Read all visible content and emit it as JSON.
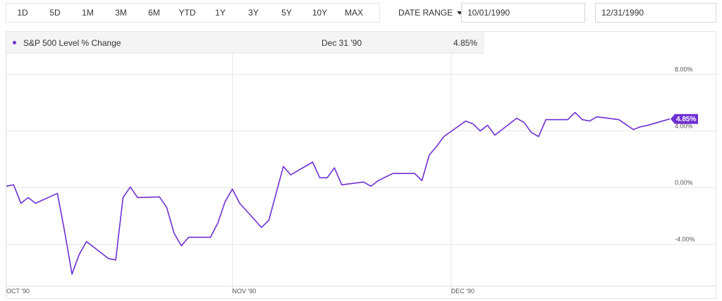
{
  "toolbar": {
    "ranges": [
      "1D",
      "5D",
      "1M",
      "3M",
      "6M",
      "YTD",
      "1Y",
      "3Y",
      "5Y",
      "10Y",
      "MAX"
    ],
    "date_range_label": "DATE RANGE",
    "start_date": "10/01/1990",
    "end_date": "12/31/1990"
  },
  "legend": {
    "series_name": "S&P 500 Level % Change",
    "date": "Dec 31 '90",
    "value": "4.85%"
  },
  "colors": {
    "line": "#6f2fd3",
    "badge": "#6f2fd3",
    "grid": "#e6e6e6"
  },
  "chart_data": {
    "type": "line",
    "x_ticks": [
      "OCT '90",
      "NOV '90",
      "DEC '90"
    ],
    "y_ticks": [
      "8.00%",
      "4.00%",
      "0.00%",
      "-4.00%"
    ],
    "y_tick_values": [
      8,
      4,
      0,
      -4
    ],
    "ylim": [
      -6.8,
      11
    ],
    "last_value_label": "4.85%",
    "series": [
      {
        "name": "S&P 500 Level % Change",
        "dates": [
          "1990-10-01",
          "1990-10-02",
          "1990-10-03",
          "1990-10-04",
          "1990-10-05",
          "1990-10-08",
          "1990-10-09",
          "1990-10-10",
          "1990-10-11",
          "1990-10-12",
          "1990-10-15",
          "1990-10-16",
          "1990-10-17",
          "1990-10-18",
          "1990-10-19",
          "1990-10-22",
          "1990-10-23",
          "1990-10-24",
          "1990-10-25",
          "1990-10-26",
          "1990-10-29",
          "1990-10-30",
          "1990-10-31",
          "1990-11-01",
          "1990-11-02",
          "1990-11-05",
          "1990-11-06",
          "1990-11-07",
          "1990-11-08",
          "1990-11-09",
          "1990-11-12",
          "1990-11-13",
          "1990-11-14",
          "1990-11-15",
          "1990-11-16",
          "1990-11-19",
          "1990-11-20",
          "1990-11-21",
          "1990-11-23",
          "1990-11-26",
          "1990-11-27",
          "1990-11-28",
          "1990-11-29",
          "1990-11-30",
          "1990-12-03",
          "1990-12-04",
          "1990-12-05",
          "1990-12-06",
          "1990-12-07",
          "1990-12-10",
          "1990-12-11",
          "1990-12-12",
          "1990-12-13",
          "1990-12-14",
          "1990-12-17",
          "1990-12-18",
          "1990-12-19",
          "1990-12-20",
          "1990-12-21",
          "1990-12-24",
          "1990-12-26",
          "1990-12-27",
          "1990-12-28",
          "1990-12-31"
        ],
        "values": [
          0.1,
          0.2,
          -1.1,
          -0.7,
          -1.1,
          -0.4,
          -3.1,
          -6.1,
          -4.7,
          -3.8,
          -5.0,
          -5.1,
          -0.7,
          0.05,
          -0.7,
          -0.65,
          -1.4,
          -3.2,
          -4.1,
          -3.5,
          -3.5,
          -2.5,
          -1.0,
          -0.1,
          -1.1,
          -2.8,
          -2.3,
          -0.4,
          1.5,
          0.9,
          1.8,
          0.7,
          0.7,
          1.4,
          0.2,
          0.4,
          0.1,
          0.5,
          1.0,
          1.0,
          0.5,
          2.3,
          2.9,
          3.6,
          4.7,
          4.5,
          4.0,
          4.4,
          3.7,
          4.9,
          4.6,
          3.9,
          3.6,
          4.8,
          4.8,
          5.3,
          4.8,
          4.7,
          5.0,
          4.8,
          4.1,
          4.3,
          4.4,
          4.85
        ]
      }
    ]
  }
}
